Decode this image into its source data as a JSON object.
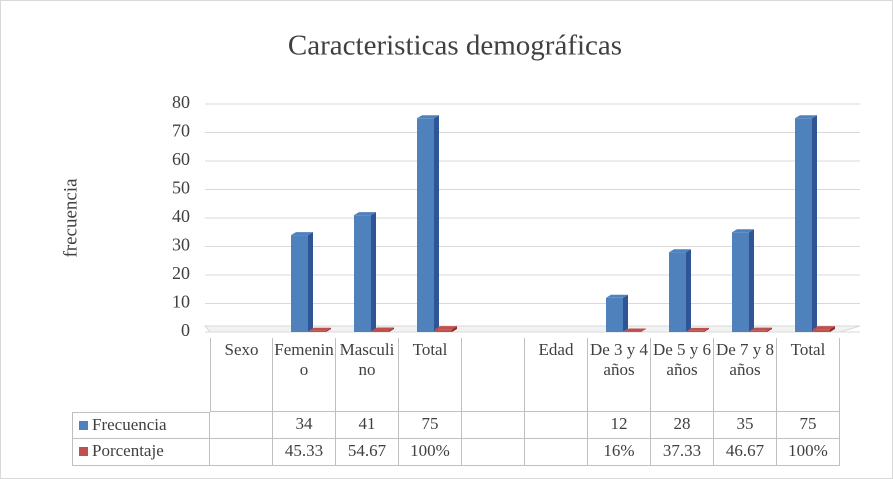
{
  "chart_data": {
    "type": "bar",
    "title": "Caracteristicas demográficas",
    "y_label": "frecuencia",
    "categories": [
      "Sexo",
      "Femenino",
      "Masculino",
      "Total",
      null,
      "Edad",
      "De 3 y 4 años",
      "De 5 y 6 años",
      "De 7 y 8 años",
      "Total"
    ],
    "series": [
      {
        "name": "Frecuencia",
        "color": "#4f81bd",
        "values": [
          null,
          34,
          41,
          75,
          null,
          null,
          12,
          28,
          35,
          75
        ]
      },
      {
        "name": "Porcentaje",
        "color": "#c0504d",
        "values": [
          null,
          0.4533,
          0.5467,
          1,
          null,
          null,
          0.16,
          0.3733,
          0.4667,
          1
        ],
        "value_labels": [
          null,
          "45.33",
          "54.67",
          "100%",
          null,
          null,
          "16%",
          "37.33",
          "46.67",
          "100%"
        ]
      }
    ],
    "ylim": [
      0,
      80
    ],
    "yticks": [
      0,
      10,
      20,
      30,
      40,
      50,
      60,
      70,
      80
    ],
    "grid": true,
    "data_table": true
  }
}
